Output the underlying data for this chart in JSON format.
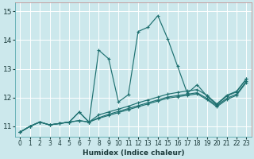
{
  "title": "",
  "xlabel": "Humidex (Indice chaleur)",
  "xlim": [
    -0.5,
    23.5
  ],
  "ylim": [
    10.65,
    15.3
  ],
  "yticks": [
    11,
    12,
    13,
    14,
    15
  ],
  "xticks": [
    0,
    1,
    2,
    3,
    4,
    5,
    6,
    7,
    8,
    9,
    10,
    11,
    12,
    13,
    14,
    15,
    16,
    17,
    18,
    19,
    20,
    21,
    22,
    23
  ],
  "background_color": "#cce8ec",
  "grid_color": "#b0d8dd",
  "line_color": "#1e7070",
  "series": [
    [
      10.8,
      11.0,
      11.15,
      11.05,
      11.1,
      11.15,
      11.5,
      11.15,
      13.65,
      13.35,
      11.85,
      12.1,
      14.3,
      14.45,
      14.85,
      14.05,
      13.1,
      12.15,
      12.45,
      12.05,
      11.75,
      12.05,
      12.2,
      12.65
    ],
    [
      10.8,
      11.0,
      11.15,
      11.05,
      11.1,
      11.15,
      11.5,
      11.15,
      11.4,
      11.5,
      11.6,
      11.7,
      11.82,
      11.92,
      12.02,
      12.12,
      12.18,
      12.23,
      12.28,
      12.08,
      11.78,
      12.08,
      12.22,
      12.65
    ],
    [
      10.8,
      11.0,
      11.15,
      11.05,
      11.1,
      11.15,
      11.2,
      11.15,
      11.3,
      11.42,
      11.52,
      11.62,
      11.72,
      11.82,
      11.92,
      12.02,
      12.07,
      12.12,
      12.17,
      11.97,
      11.72,
      11.97,
      12.12,
      12.57
    ],
    [
      10.8,
      11.0,
      11.15,
      11.05,
      11.1,
      11.15,
      11.2,
      11.15,
      11.28,
      11.38,
      11.48,
      11.58,
      11.68,
      11.78,
      11.88,
      11.98,
      12.03,
      12.08,
      12.13,
      11.93,
      11.68,
      11.93,
      12.08,
      12.53
    ]
  ]
}
